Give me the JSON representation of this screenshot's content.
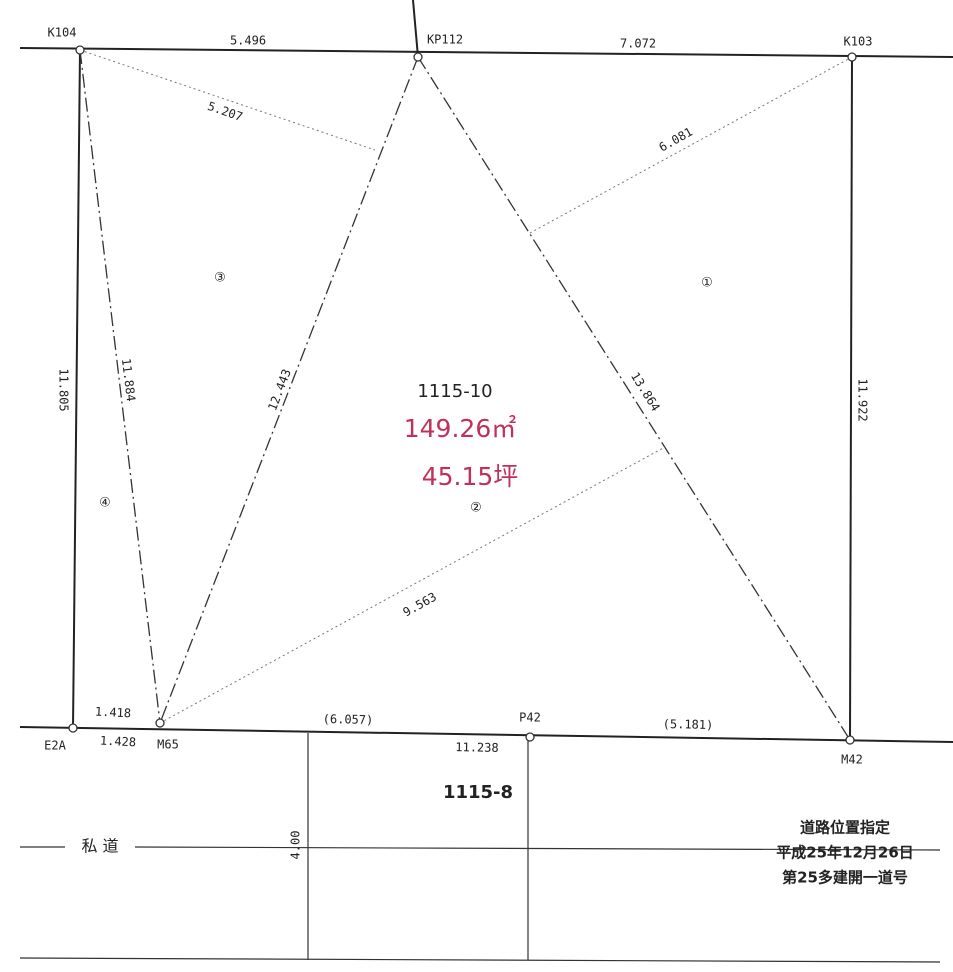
{
  "points": [
    "K104",
    "KP112",
    "K103",
    "E2A",
    "M65",
    "P42",
    "M42"
  ],
  "distances": [
    "5.496",
    "7.072",
    "5.207",
    "6.081",
    "11.805",
    "11.884",
    "12.443",
    "13.864",
    "11.922",
    "9.563",
    "1.418",
    "1.428",
    "(6.057)",
    "11.238",
    "(5.181)",
    "4.00"
  ],
  "regions": [
    "①",
    "②",
    "③",
    "④"
  ],
  "lot": {
    "number": "1115-10",
    "area_m2": "149.26㎡",
    "area_tsubo": "45.15坪"
  },
  "adjacent_lot": "1115-8",
  "road": "私 道",
  "note": [
    "道路位置指定",
    "平成25年12月26日",
    "第25多建開一道号"
  ]
}
